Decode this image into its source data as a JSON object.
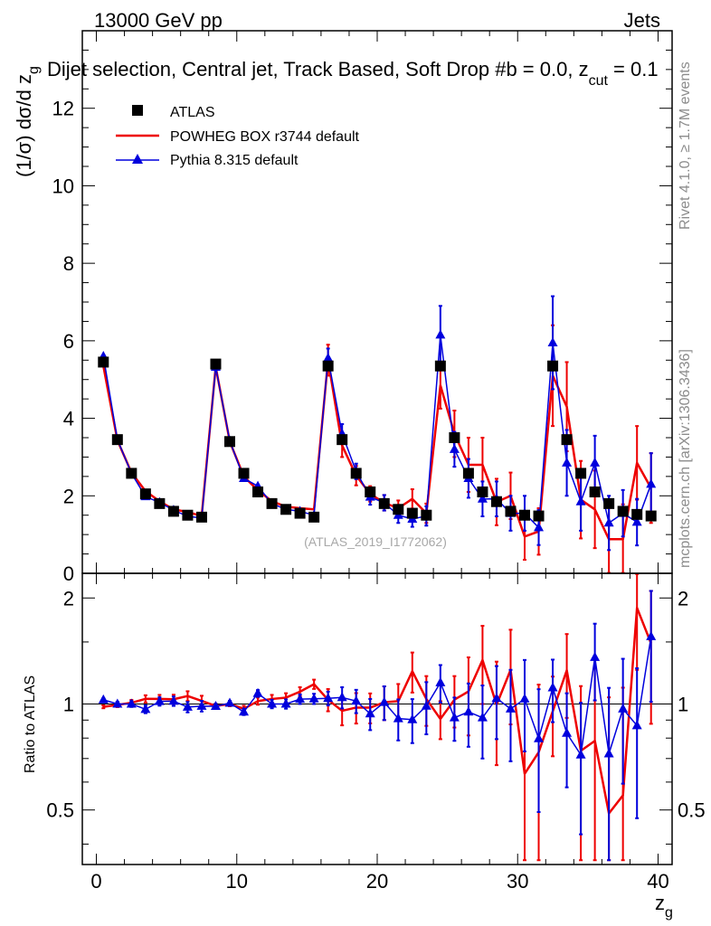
{
  "chart_data": {
    "type": "line",
    "header_left": "13000 GeV pp",
    "header_right": "Jets",
    "title": "Dijet selection, Central jet, Track Based, Soft Drop #b = 0.0, z",
    "title_sub": "cut",
    "title_tail": " = 0.1",
    "ylabel_main": "(1/σ) dσ/d z",
    "ylabel_main_sub": "g",
    "ylabel_ratio": "Ratio to ATLAS",
    "xlabel": "z",
    "xlabel_sub": "g",
    "watermark": "(ATLAS_2019_I1772062)",
    "side_label_1": "Rivet 4.1.0, ≥ 1.7M events",
    "side_label_2": "mcplots.cern.ch [arXiv:1306.3436]",
    "xlim": [
      -1,
      41
    ],
    "ylim_main": [
      0,
      14
    ],
    "ylim_ratio": [
      0.35,
      2.35
    ],
    "x_ticks": [
      "0",
      "10",
      "20",
      "30",
      "40"
    ],
    "y_ticks_main": [
      "0",
      "2",
      "4",
      "6",
      "8",
      "10",
      "12"
    ],
    "y_ticks_ratio": [
      "0.5",
      "1",
      "2"
    ],
    "x": [
      0.5,
      1.5,
      2.5,
      3.5,
      4.5,
      5.5,
      6.5,
      7.5,
      8.5,
      9.5,
      10.5,
      11.5,
      12.5,
      13.5,
      14.5,
      15.5,
      16.5,
      17.5,
      18.5,
      19.5,
      20.5,
      21.5,
      22.5,
      23.5,
      24.5,
      25.5,
      26.5,
      27.5,
      28.5,
      29.5,
      30.5,
      31.5,
      32.5,
      33.5,
      34.5,
      35.5,
      36.5,
      37.5,
      38.5,
      39.5
    ],
    "series": [
      {
        "name": "ATLAS",
        "color": "#000000",
        "marker": "square",
        "values": [
          5.45,
          3.45,
          2.58,
          2.05,
          1.8,
          1.6,
          1.5,
          1.45,
          5.4,
          3.4,
          2.58,
          2.1,
          1.8,
          1.65,
          1.55,
          1.45,
          5.35,
          3.45,
          2.58,
          2.1,
          1.8,
          1.65,
          1.55,
          1.5,
          5.35,
          3.5,
          2.58,
          2.1,
          1.85,
          1.6,
          1.5,
          1.48,
          5.35,
          3.45,
          2.58,
          2.1,
          1.8,
          1.6,
          1.52,
          1.48
        ]
      },
      {
        "name": "POWHEG BOX r3744 default",
        "color": "#ee0000",
        "marker": "none",
        "values": [
          5.35,
          3.43,
          2.6,
          2.12,
          1.86,
          1.65,
          1.58,
          1.48,
          5.33,
          3.4,
          2.5,
          2.14,
          1.86,
          1.72,
          1.68,
          1.65,
          5.5,
          3.3,
          2.52,
          2.05,
          1.82,
          1.68,
          1.92,
          1.55,
          4.85,
          3.6,
          2.8,
          2.8,
          1.84,
          2.0,
          0.95,
          1.08,
          5.1,
          4.3,
          1.9,
          1.65,
          0.88,
          0.88,
          2.85,
          2.2
        ],
        "errors": [
          0.05,
          0.05,
          0.05,
          0.05,
          0.05,
          0.05,
          0.05,
          0.05,
          0.08,
          0.05,
          0.05,
          0.05,
          0.05,
          0.05,
          0.05,
          0.05,
          0.4,
          0.3,
          0.25,
          0.2,
          0.2,
          0.2,
          0.25,
          0.25,
          0.6,
          0.6,
          0.7,
          0.7,
          0.6,
          0.6,
          0.6,
          0.6,
          1.3,
          1.15,
          1.0,
          1.0,
          1.0,
          0.9,
          0.95,
          0.9
        ]
      },
      {
        "name": "Pythia 8.315 default",
        "color": "#0000dd",
        "marker": "triangle",
        "values": [
          5.6,
          3.45,
          2.58,
          1.98,
          1.83,
          1.63,
          1.47,
          1.43,
          5.32,
          3.42,
          2.45,
          2.25,
          1.8,
          1.65,
          1.6,
          1.5,
          5.55,
          3.6,
          2.63,
          1.97,
          1.82,
          1.5,
          1.4,
          1.48,
          6.15,
          3.2,
          2.45,
          1.92,
          1.92,
          1.55,
          1.55,
          1.18,
          5.95,
          2.85,
          1.85,
          2.85,
          1.3,
          1.55,
          1.32,
          2.3
        ],
        "errors": [
          0.05,
          0.05,
          0.05,
          0.05,
          0.05,
          0.05,
          0.05,
          0.05,
          0.08,
          0.05,
          0.05,
          0.05,
          0.05,
          0.05,
          0.05,
          0.05,
          0.25,
          0.25,
          0.2,
          0.2,
          0.2,
          0.2,
          0.2,
          0.25,
          0.75,
          0.45,
          0.5,
          0.45,
          0.45,
          0.45,
          0.45,
          0.45,
          1.2,
          0.85,
          0.75,
          0.7,
          0.7,
          0.6,
          0.6,
          0.8
        ]
      }
    ]
  }
}
